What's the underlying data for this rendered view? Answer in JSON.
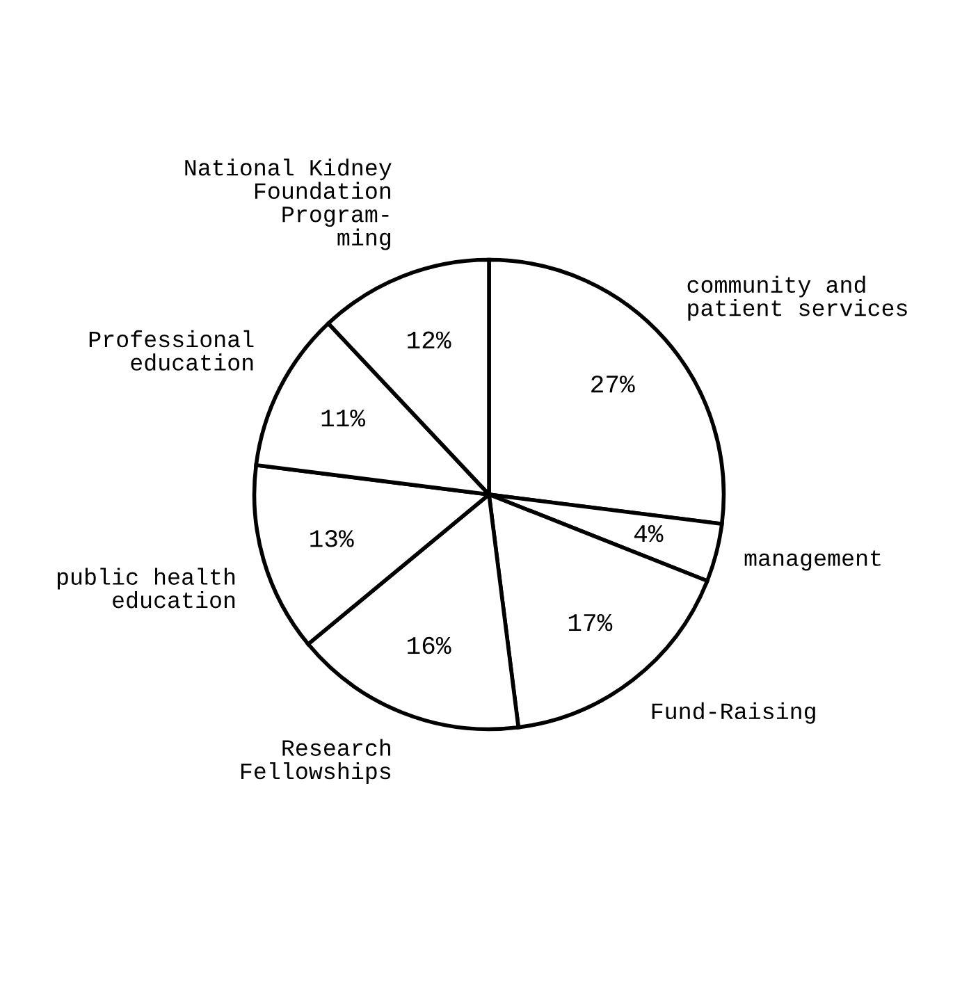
{
  "chart_data": {
    "type": "pie",
    "categories": [
      "community and\npatient services",
      "management",
      "Fund-Raising",
      "Research\nFellowships",
      "public health\neducation",
      "Professional\neducation",
      "National Kidney\nFoundation\nProgram-\nming"
    ],
    "values": [
      27,
      4,
      17,
      16,
      13,
      11,
      12
    ],
    "value_labels": [
      "27%",
      "4%",
      "17%",
      "16%",
      "13%",
      "11%",
      "12%"
    ],
    "colors": [
      "#ffffff",
      "#ffffff",
      "#ffffff",
      "#ffffff",
      "#ffffff",
      "#ffffff",
      "#ffffff"
    ]
  }
}
